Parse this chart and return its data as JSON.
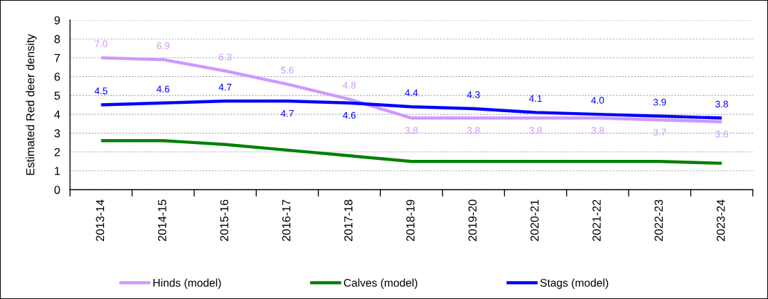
{
  "chart_data": {
    "type": "line",
    "ylabel": "Estimated Red deer density",
    "categories": [
      "2013-14",
      "2014-15",
      "2015-16",
      "2016-17",
      "2017-18",
      "2018-19",
      "2019-20",
      "2020-21",
      "2021-22",
      "2022-23",
      "2023-24"
    ],
    "series": [
      {
        "name": "Hinds (model)",
        "color": "#cc99ff",
        "values": [
          7.0,
          6.9,
          6.3,
          5.6,
          4.8,
          3.8,
          3.8,
          3.8,
          3.8,
          3.7,
          3.6
        ],
        "value_labels": [
          "7.0",
          "6.9",
          "6.3",
          "5.6",
          "4.8",
          "3.8",
          "3.8",
          "3.8",
          "3.8",
          "3.7",
          "3.6"
        ]
      },
      {
        "name": "Calves (model)",
        "color": "#008000",
        "values": [
          2.6,
          2.6,
          2.4,
          2.1,
          1.8,
          1.5,
          1.5,
          1.5,
          1.5,
          1.5,
          1.4
        ]
      },
      {
        "name": "Stags (model)",
        "color": "#0000ff",
        "values": [
          4.5,
          4.6,
          4.7,
          4.7,
          4.6,
          4.4,
          4.3,
          4.1,
          4.0,
          3.9,
          3.8
        ],
        "value_labels": [
          "4.5",
          "4.6",
          "4.7",
          "4.7",
          "4.6",
          "4.4",
          "4.3",
          "4.1",
          "4.0",
          "3.9",
          "3.8"
        ]
      }
    ],
    "ylim": [
      0,
      9
    ],
    "yticks": [
      0,
      1,
      2,
      3,
      4,
      5,
      6,
      7,
      8,
      9
    ],
    "grid": "y",
    "legend": "bottom",
    "line_style": "solid"
  }
}
